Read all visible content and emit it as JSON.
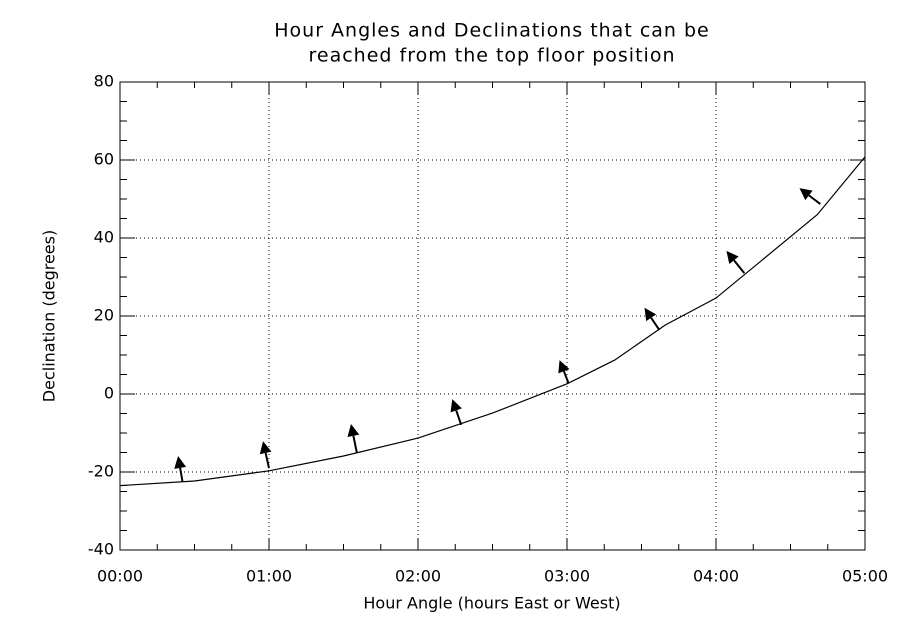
{
  "chart_data": {
    "type": "line",
    "title": [
      "Hour Angles and Declinations that can be",
      "reached from the top floor position"
    ],
    "x_label": "Hour Angle (hours East or West)",
    "y_label": "Declination (degrees)",
    "xlim": [
      0,
      5
    ],
    "ylim": [
      -40,
      80
    ],
    "xticks": [
      {
        "value": 0,
        "label": "00:00"
      },
      {
        "value": 1,
        "label": "01:00"
      },
      {
        "value": 2,
        "label": "02:00"
      },
      {
        "value": 3,
        "label": "03:00"
      },
      {
        "value": 4,
        "label": "04:00"
      },
      {
        "value": 5,
        "label": "05:00"
      }
    ],
    "yticks": [
      -40,
      -20,
      0,
      20,
      40,
      60,
      80
    ],
    "minor_ticks": 4,
    "grid": true,
    "series": [
      {
        "color": "#000000",
        "x": [
          0,
          0.5,
          1,
          1.5,
          2,
          2.5,
          3,
          3.32,
          3.66,
          4,
          4.68,
          5
        ],
        "values": [
          -23.5,
          -22.3,
          -19.7,
          -15.9,
          -11.3,
          -4.9,
          2.6,
          8.7,
          17.7,
          24.6,
          46,
          60.8
        ]
      }
    ],
    "arrows": [
      {
        "x": 0.42,
        "y": -22.6,
        "x2": 0.39,
        "y2": -15.9
      },
      {
        "x": 1.0,
        "y": -19,
        "x2": 0.96,
        "y2": -12.1
      },
      {
        "x": 1.59,
        "y": -15.1,
        "x2": 1.55,
        "y2": -7.7
      },
      {
        "x": 2.29,
        "y": -7.9,
        "x2": 2.23,
        "y2": -1.3
      },
      {
        "x": 3.01,
        "y": 2.8,
        "x2": 2.95,
        "y2": 8.7
      },
      {
        "x": 3.62,
        "y": 16.4,
        "x2": 3.52,
        "y2": 22.1
      },
      {
        "x": 4.19,
        "y": 31,
        "x2": 4.07,
        "y2": 36.7
      },
      {
        "x": 4.7,
        "y": 48.7,
        "x2": 4.56,
        "y2": 52.8
      }
    ]
  }
}
